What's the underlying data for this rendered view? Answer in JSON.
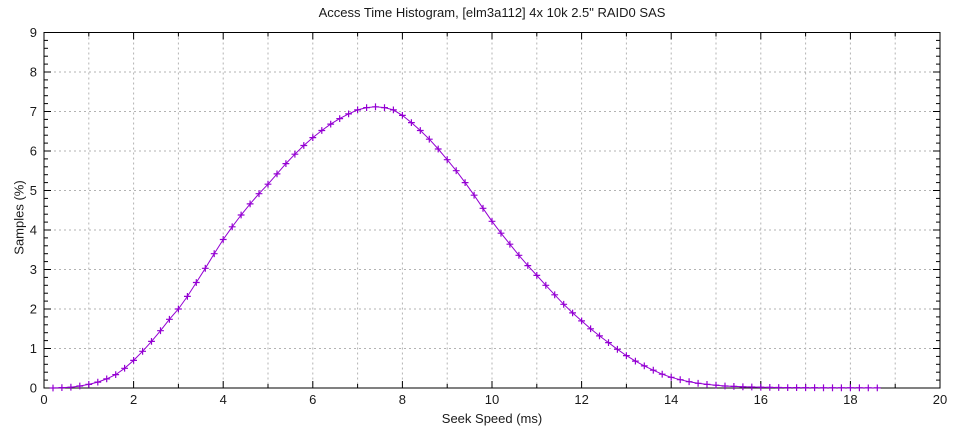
{
  "chart_data": {
    "type": "line",
    "title": "Access Time Histogram, [elm3a112] 4x 10k 2.5\" RAID0 SAS",
    "xlabel": "Seek Speed (ms)",
    "ylabel": "Samples (%)",
    "xlim": [
      0,
      20
    ],
    "ylim": [
      0,
      9
    ],
    "x_tick_labels": [
      "0",
      "2",
      "4",
      "6",
      "8",
      "10",
      "12",
      "14",
      "16",
      "18",
      "20"
    ],
    "y_tick_labels": [
      "0",
      "1",
      "2",
      "3",
      "4",
      "5",
      "6",
      "7",
      "8",
      "9"
    ],
    "x_grid_step": 1,
    "x_major_step": 2,
    "y_grid_step": 1,
    "y_minor_step": 0.2,
    "grid": true,
    "legend": "none",
    "line_color": "#9400d3",
    "grid_color": "#b3b3b3",
    "border_color": "#000000",
    "marker": "plus",
    "series": [
      {
        "name": "access-time-samples",
        "x": [
          0.2,
          0.4,
          0.6,
          0.8,
          1.0,
          1.2,
          1.4,
          1.6,
          1.8,
          2.0,
          2.2,
          2.4,
          2.6,
          2.8,
          3.0,
          3.2,
          3.4,
          3.6,
          3.8,
          4.0,
          4.2,
          4.4,
          4.6,
          4.8,
          5.0,
          5.2,
          5.4,
          5.6,
          5.8,
          6.0,
          6.2,
          6.4,
          6.6,
          6.8,
          7.0,
          7.2,
          7.4,
          7.6,
          7.8,
          8.0,
          8.2,
          8.4,
          8.6,
          8.8,
          9.0,
          9.2,
          9.4,
          9.6,
          9.8,
          10.0,
          10.2,
          10.4,
          10.6,
          10.8,
          11.0,
          11.2,
          11.4,
          11.6,
          11.8,
          12.0,
          12.2,
          12.4,
          12.6,
          12.8,
          13.0,
          13.2,
          13.4,
          13.6,
          13.8,
          14.0,
          14.2,
          14.4,
          14.6,
          14.8,
          15.0,
          15.2,
          15.4,
          15.6,
          15.8,
          16.0,
          16.2,
          16.4,
          16.6,
          16.8,
          17.0,
          17.2,
          17.4,
          17.6,
          17.8,
          18.0,
          18.2,
          18.4,
          18.6
        ],
        "y": [
          0.0,
          0.01,
          0.02,
          0.05,
          0.09,
          0.15,
          0.23,
          0.34,
          0.5,
          0.7,
          0.93,
          1.18,
          1.45,
          1.74,
          2.0,
          2.32,
          2.67,
          3.03,
          3.4,
          3.76,
          4.08,
          4.38,
          4.66,
          4.92,
          5.16,
          5.42,
          5.68,
          5.92,
          6.14,
          6.34,
          6.52,
          6.68,
          6.82,
          6.94,
          7.04,
          7.1,
          7.12,
          7.1,
          7.04,
          6.9,
          6.72,
          6.52,
          6.3,
          6.05,
          5.78,
          5.5,
          5.2,
          4.88,
          4.55,
          4.22,
          3.92,
          3.64,
          3.36,
          3.1,
          2.85,
          2.6,
          2.36,
          2.12,
          1.9,
          1.7,
          1.5,
          1.32,
          1.15,
          0.98,
          0.82,
          0.68,
          0.56,
          0.45,
          0.35,
          0.27,
          0.21,
          0.16,
          0.12,
          0.09,
          0.07,
          0.05,
          0.04,
          0.03,
          0.025,
          0.02,
          0.015,
          0.012,
          0.01,
          0.01,
          0.008,
          0.007,
          0.006,
          0.005,
          0.005,
          0.004,
          0.004,
          0.003,
          0.003
        ]
      }
    ]
  }
}
